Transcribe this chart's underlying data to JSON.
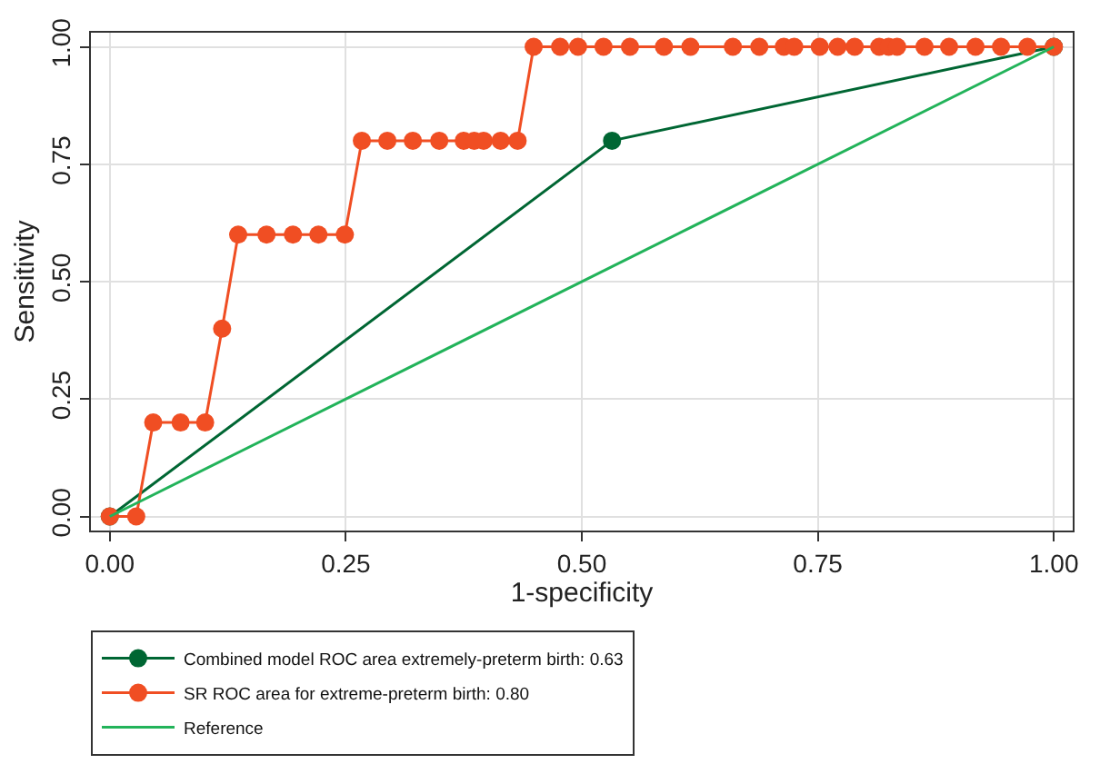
{
  "chart_data": {
    "type": "line",
    "xlabel": "1-specificity",
    "ylabel": "Sensitivity",
    "xlim": [
      -0.02,
      1.02
    ],
    "ylim": [
      -0.03,
      1.03
    ],
    "xticks": [
      {
        "value": 0,
        "label": "0.00"
      },
      {
        "value": 0.25,
        "label": "0.25"
      },
      {
        "value": 0.5,
        "label": "0.50"
      },
      {
        "value": 0.75,
        "label": "0.75"
      },
      {
        "value": 1,
        "label": "1.00"
      }
    ],
    "yticks": [
      {
        "value": 0,
        "label": "0.00"
      },
      {
        "value": 0.25,
        "label": "0.25"
      },
      {
        "value": 0.5,
        "label": "0.50"
      },
      {
        "value": 0.75,
        "label": "0.75"
      },
      {
        "value": 1,
        "label": "1.00"
      }
    ],
    "grid": true,
    "legend": "bottom",
    "series": [
      {
        "name": "Combined model ROC area extremely-preterm birth: 0.63",
        "color": "#006633",
        "marker": "circle",
        "x": [
          0,
          0.532,
          1
        ],
        "values": [
          0,
          0.8,
          1
        ]
      },
      {
        "name": "SR ROC area for extreme-preterm birth: 0.80",
        "color": "#f04e23",
        "marker": "circle",
        "x": [
          0,
          0.028,
          0.046,
          0.075,
          0.101,
          0.119,
          0.136,
          0.166,
          0.194,
          0.221,
          0.249,
          0.267,
          0.294,
          0.321,
          0.349,
          0.375,
          0.386,
          0.396,
          0.414,
          0.432,
          0.449,
          0.477,
          0.496,
          0.523,
          0.551,
          0.587,
          0.615,
          0.66,
          0.688,
          0.714,
          0.725,
          0.752,
          0.771,
          0.789,
          0.815,
          0.825,
          0.834,
          0.863,
          0.889,
          0.917,
          0.944,
          0.972,
          1.0
        ],
        "values": [
          0,
          0,
          0.2,
          0.2,
          0.2,
          0.4,
          0.6,
          0.6,
          0.6,
          0.6,
          0.6,
          0.8,
          0.8,
          0.8,
          0.8,
          0.8,
          0.8,
          0.8,
          0.8,
          0.8,
          1,
          1,
          1,
          1,
          1,
          1,
          1,
          1,
          1,
          1,
          1,
          1,
          1,
          1,
          1,
          1,
          1,
          1,
          1,
          1,
          1,
          1,
          1
        ]
      },
      {
        "name": "Reference",
        "color": "#22b35a",
        "marker": "none",
        "x": [
          0,
          1
        ],
        "values": [
          0,
          1
        ]
      }
    ]
  }
}
